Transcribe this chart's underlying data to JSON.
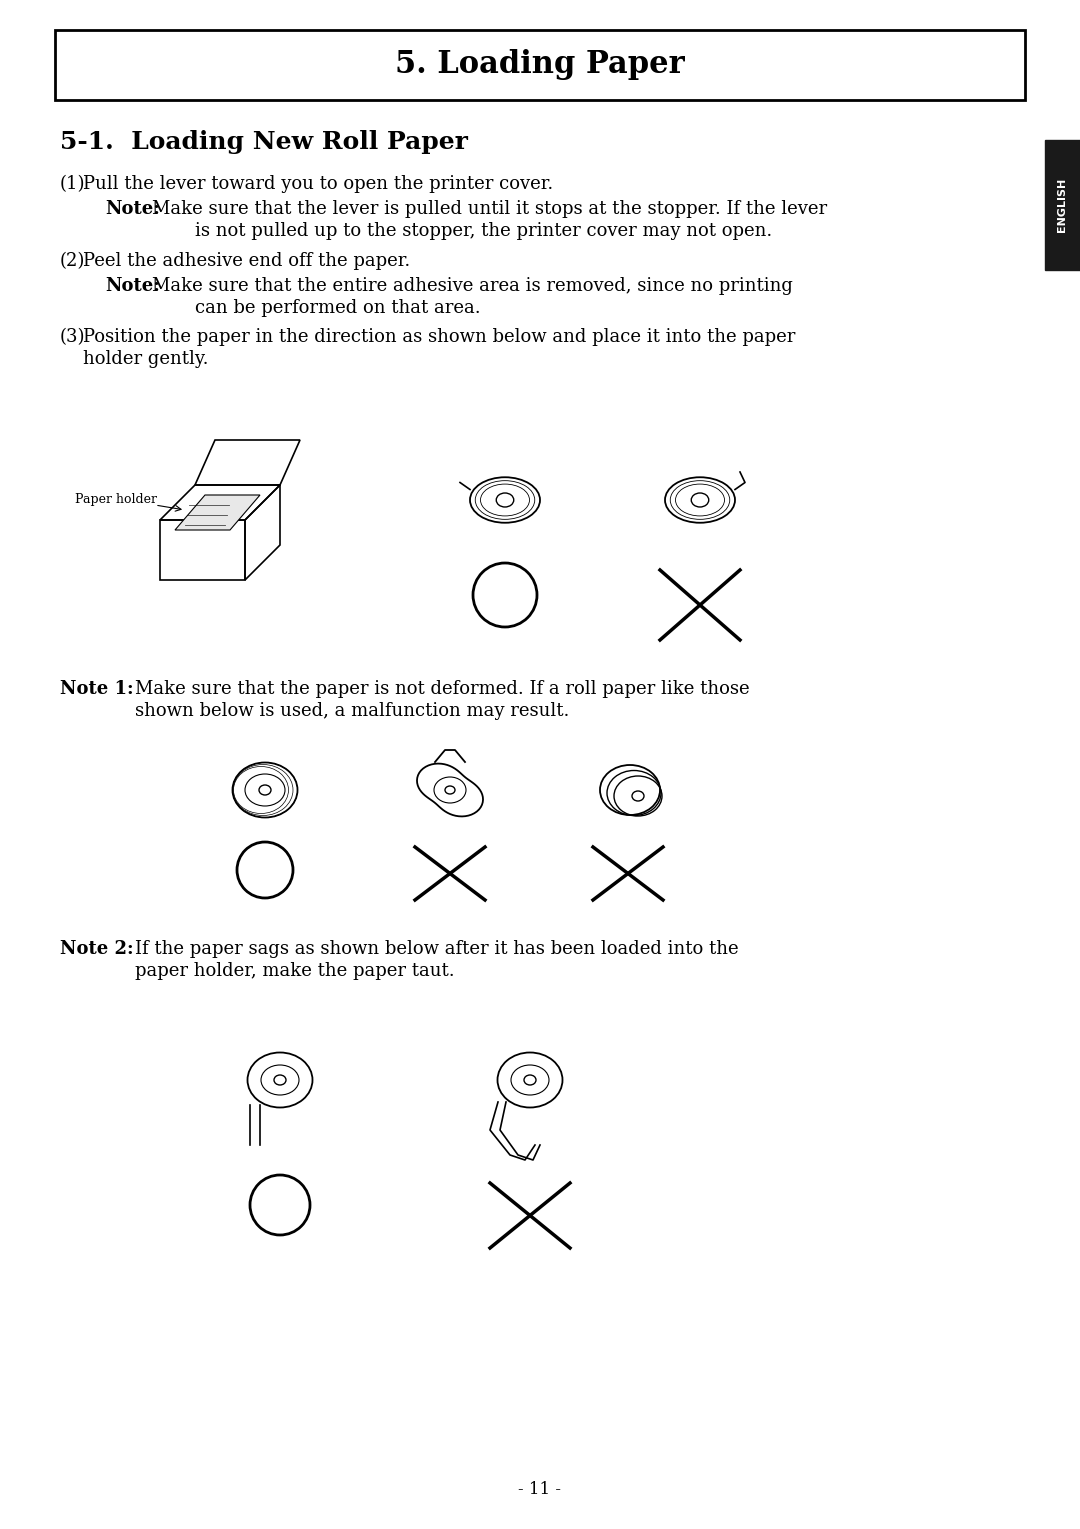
{
  "title": "5. Loading Paper",
  "section_title": "5-1.  Loading New Roll Paper",
  "bg_color": "#ffffff",
  "text_color": "#000000",
  "title_fontsize": 22,
  "section_fontsize": 18,
  "body_fontsize": 13,
  "note_fontsize": 13,
  "page_number": "- 11 -",
  "english_tab_text": "ENGLISH",
  "paragraphs": [
    "(1) Pull the lever toward you to open the printer cover.",
    "    Note:  Make sure that the lever is pulled until it stops at the stopper. If the lever\n                   is not pulled up to the stopper, the printer cover may not open.",
    "(2) Peel the adhesive end off the paper.",
    "    Note:  Make sure that the entire adhesive area is removed, since no printing\n                   can be performed on that area.",
    "(3) Position the paper in the direction as shown below and place it into the paper\n       holder gently."
  ],
  "note1_text": "Note 1:   Make sure that the paper is not deformed. If a roll paper like those\n              shown below is used, a malfunction may result.",
  "note2_text": "Note 2:   If the paper sags as shown below after it has been loaded into the\n              paper holder, make the paper taut."
}
